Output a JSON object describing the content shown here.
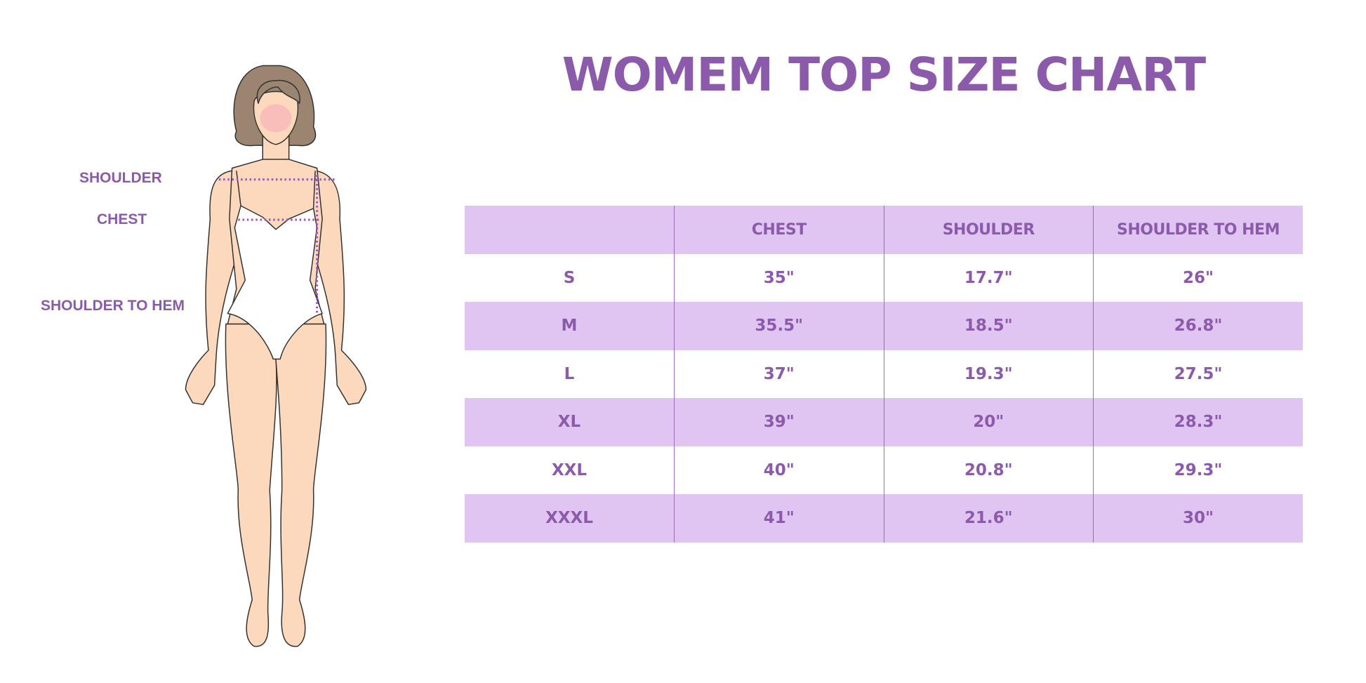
{
  "title": "WOMEM TOP SIZE CHART",
  "figure_labels": {
    "shoulder": "SHOULDER",
    "chest": "CHEST",
    "shoulder_to_hem": "SHOULDER TO HEM"
  },
  "colors": {
    "accent": "#8c5aab",
    "header_bg": "#e0c5f3",
    "skin": "#fcd8bd",
    "hair": "#9b8570"
  },
  "table": {
    "headers": [
      "",
      "CHEST",
      "SHOULDER",
      "SHOULDER TO HEM"
    ],
    "rows": [
      [
        "S",
        "35\"",
        "17.7\"",
        "26\""
      ],
      [
        "M",
        "35.5\"",
        "18.5\"",
        "26.8\""
      ],
      [
        "L",
        "37\"",
        "19.3\"",
        "27.5\""
      ],
      [
        "XL",
        "39\"",
        "20\"",
        "28.3\""
      ],
      [
        "XXL",
        "40\"",
        "20.8\"",
        "29.3\""
      ],
      [
        "XXXL",
        "41\"",
        "21.6\"",
        "30\""
      ]
    ]
  }
}
